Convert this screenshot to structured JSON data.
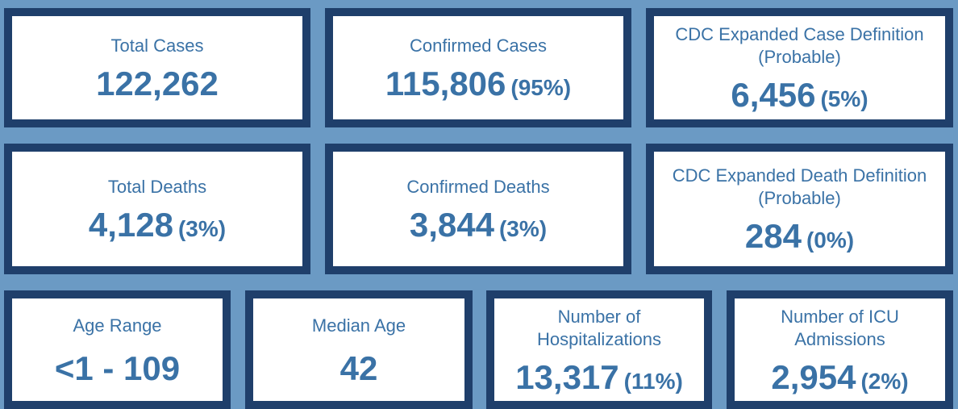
{
  "row1": [
    {
      "label": "Total Cases",
      "value": "122,262",
      "pct": ""
    },
    {
      "label": "Confirmed Cases",
      "value": "115,806",
      "pct": "(95%)"
    },
    {
      "label": "CDC Expanded Case Definition (Probable)",
      "value": "6,456",
      "pct": "(5%)"
    }
  ],
  "row2": [
    {
      "label": "Total Deaths",
      "value": "4,128",
      "pct": "(3%)"
    },
    {
      "label": "Confirmed Deaths",
      "value": "3,844",
      "pct": "(3%)"
    },
    {
      "label": "CDC Expanded Death Definition (Probable)",
      "value": "284",
      "pct": "(0%)"
    }
  ],
  "row3": [
    {
      "label": "Age Range",
      "value": "<1 - 109",
      "pct": ""
    },
    {
      "label": "Median Age",
      "value": "42",
      "pct": ""
    },
    {
      "label": "Number of Hospitalizations",
      "value": "13,317",
      "pct": "(11%)"
    },
    {
      "label": "Number of ICU Admissions",
      "value": "2,954",
      "pct": "(2%)"
    }
  ],
  "colors": {
    "background": "#6b9ac4",
    "border": "#1f3f6b",
    "text": "#3a72a6",
    "card": "#ffffff"
  }
}
